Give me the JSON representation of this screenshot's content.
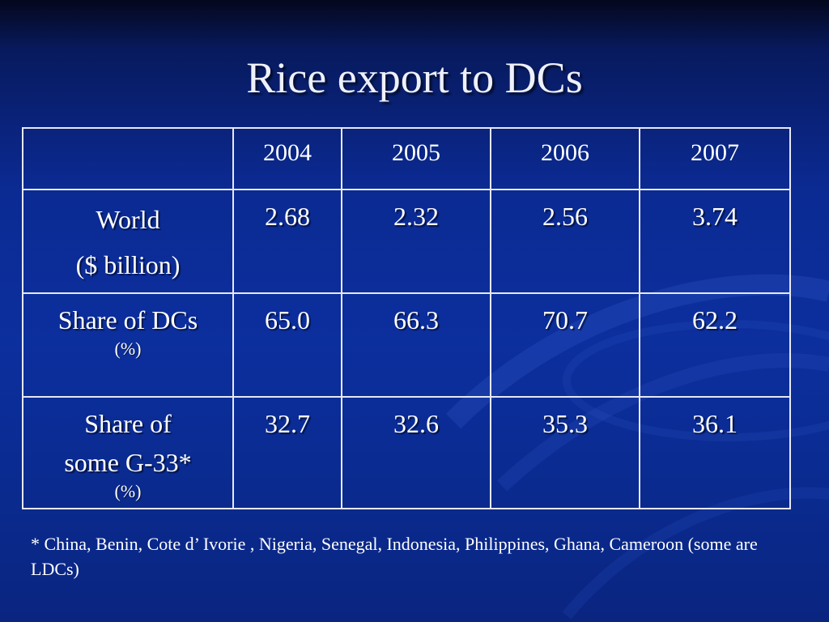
{
  "slide": {
    "title": "Rice export to DCs",
    "footnote": "* China, Benin, Cote d’ Ivorie , Nigeria, Senegal, Indonesia, Philippines, Ghana, Cameroon (some are LDCs)"
  },
  "table": {
    "header": [
      "",
      "2004",
      "2005",
      "2006",
      "2007"
    ],
    "rows": [
      {
        "label_lines": [
          "World",
          "($ billion)"
        ],
        "unit": "",
        "values": [
          "2.68",
          "2.32",
          "2.56",
          "3.74"
        ]
      },
      {
        "label_lines": [
          "Share of DCs"
        ],
        "unit": "(%)",
        "values": [
          "65.0",
          "66.3",
          "70.7",
          "62.2"
        ]
      },
      {
        "label_lines": [
          "Share of",
          "some G-33*"
        ],
        "unit": "(%)",
        "values": [
          "32.7",
          "32.6",
          "35.3",
          "36.1"
        ]
      }
    ]
  },
  "colors": {
    "background": "#0b2a92",
    "text": "#ffffff",
    "grid": "#e6e8f5"
  }
}
